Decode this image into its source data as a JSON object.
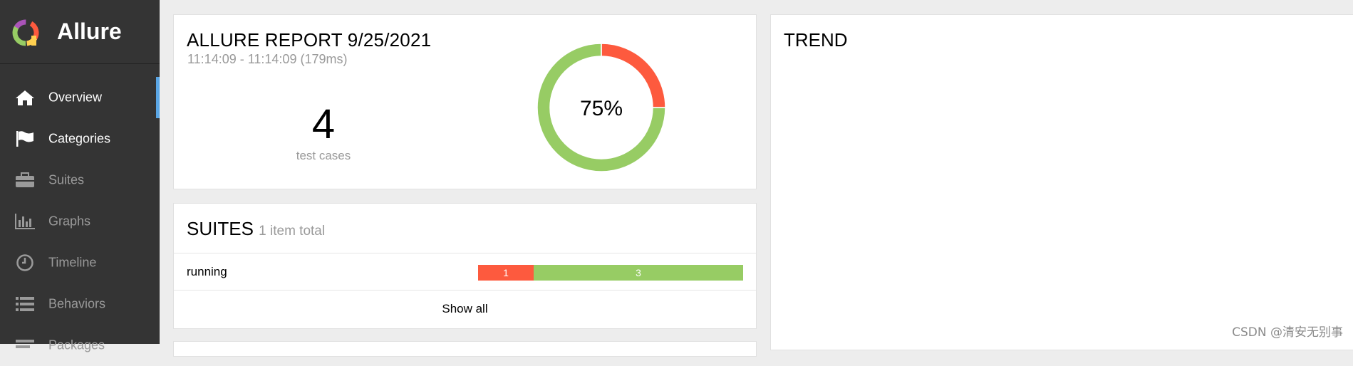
{
  "brand": {
    "name": "Allure"
  },
  "sidebar": {
    "items": [
      {
        "label": "Overview",
        "icon": "home-icon"
      },
      {
        "label": "Categories",
        "icon": "flag-icon"
      },
      {
        "label": "Suites",
        "icon": "briefcase-icon"
      },
      {
        "label": "Graphs",
        "icon": "bar-chart-icon"
      },
      {
        "label": "Timeline",
        "icon": "clock-icon"
      },
      {
        "label": "Behaviors",
        "icon": "list-icon"
      },
      {
        "label": "Packages",
        "icon": "packages-icon"
      }
    ],
    "active_index": 0
  },
  "overview": {
    "title": "ALLURE REPORT 9/25/2021",
    "subtitle": "11:14:09 - 11:14:09 (179ms)",
    "test_count": "4",
    "test_count_label": "test cases",
    "donut": {
      "percent_label": "75%",
      "segments": [
        {
          "status": "passed",
          "value": 3,
          "color": "#97cc64"
        },
        {
          "status": "failed",
          "value": 1,
          "color": "#fd5a3e"
        }
      ]
    }
  },
  "suites": {
    "title": "SUITES",
    "subtitle": "1 item total",
    "rows": [
      {
        "name": "running",
        "failed": "1",
        "passed": "3",
        "failed_count": 1,
        "passed_count": 3
      }
    ],
    "show_all": "Show all"
  },
  "trend": {
    "title": "TREND"
  },
  "watermark": "CSDN @清安无别事",
  "colors": {
    "sidebar_bg": "#343434",
    "accent": "#5aa6e5",
    "failed": "#fd5a3e",
    "passed": "#97cc64"
  }
}
